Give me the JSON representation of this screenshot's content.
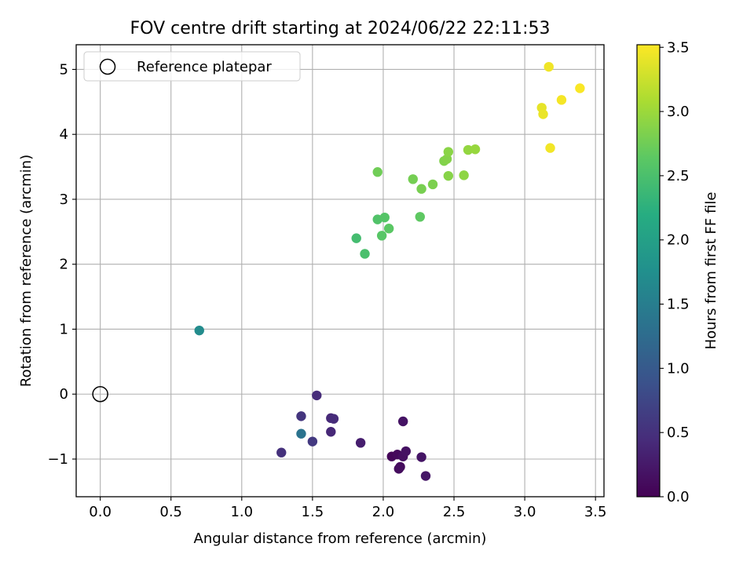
{
  "chart_data": {
    "type": "scatter",
    "title": "FOV centre drift starting at 2024/06/22 22:11:53",
    "xlabel": "Angular distance from reference (arcmin)",
    "ylabel": "Rotation from reference (arcmin)",
    "xlim": [
      -0.17,
      3.56
    ],
    "ylim": [
      -1.58,
      5.38
    ],
    "xticks": [
      0.0,
      0.5,
      1.0,
      1.5,
      2.0,
      2.5,
      3.0,
      3.5
    ],
    "xtick_labels": [
      "0.0",
      "0.5",
      "1.0",
      "1.5",
      "2.0",
      "2.5",
      "3.0",
      "3.5"
    ],
    "yticks": [
      -1,
      0,
      1,
      2,
      3,
      4,
      5
    ],
    "ytick_labels": [
      "−1",
      "0",
      "1",
      "2",
      "3",
      "4",
      "5"
    ],
    "grid": true,
    "legend": {
      "placement": "top-left",
      "entries": [
        {
          "label": "Reference platepar",
          "marker": "hollow-circle"
        }
      ]
    },
    "reference_point": {
      "x": 0.0,
      "y": 0.0
    },
    "colorbar": {
      "label": "Hours from first FF file",
      "range": [
        0.0,
        3.52
      ],
      "ticks": [
        0.0,
        0.5,
        1.0,
        1.5,
        2.0,
        2.5,
        3.0,
        3.5
      ],
      "tick_labels": [
        "0.0",
        "0.5",
        "1.0",
        "1.5",
        "2.0",
        "2.5",
        "3.0",
        "3.5"
      ],
      "colormap": "viridis"
    },
    "series": [
      {
        "points": [
          {
            "x": 2.06,
            "y": -0.96,
            "c": 0.05
          },
          {
            "x": 2.1,
            "y": -0.93,
            "c": 0.08
          },
          {
            "x": 2.12,
            "y": -1.12,
            "c": 0.1
          },
          {
            "x": 2.11,
            "y": -1.15,
            "c": 0.12
          },
          {
            "x": 2.14,
            "y": -0.96,
            "c": 0.14
          },
          {
            "x": 2.16,
            "y": -0.88,
            "c": 0.16
          },
          {
            "x": 2.14,
            "y": -0.42,
            "c": 0.18
          },
          {
            "x": 2.27,
            "y": -0.97,
            "c": 0.2
          },
          {
            "x": 2.3,
            "y": -1.26,
            "c": 0.22
          },
          {
            "x": 1.84,
            "y": -0.75,
            "c": 0.3
          },
          {
            "x": 1.63,
            "y": -0.58,
            "c": 0.4
          },
          {
            "x": 1.63,
            "y": -0.37,
            "c": 0.42
          },
          {
            "x": 1.65,
            "y": -0.38,
            "c": 0.44
          },
          {
            "x": 1.53,
            "y": -0.02,
            "c": 0.45
          },
          {
            "x": 1.28,
            "y": -0.9,
            "c": 0.5
          },
          {
            "x": 1.42,
            "y": -0.34,
            "c": 0.55
          },
          {
            "x": 1.5,
            "y": -0.73,
            "c": 0.6
          },
          {
            "x": 1.42,
            "y": -0.61,
            "c": 1.35
          },
          {
            "x": 0.7,
            "y": 0.98,
            "c": 1.7
          },
          {
            "x": 1.81,
            "y": 2.4,
            "c": 2.45
          },
          {
            "x": 1.87,
            "y": 2.16,
            "c": 2.5
          },
          {
            "x": 1.96,
            "y": 2.69,
            "c": 2.55
          },
          {
            "x": 2.01,
            "y": 2.72,
            "c": 2.58
          },
          {
            "x": 1.99,
            "y": 2.44,
            "c": 2.6
          },
          {
            "x": 2.04,
            "y": 2.55,
            "c": 2.62
          },
          {
            "x": 2.26,
            "y": 2.73,
            "c": 2.65
          },
          {
            "x": 1.96,
            "y": 3.42,
            "c": 2.75
          },
          {
            "x": 2.21,
            "y": 3.31,
            "c": 2.78
          },
          {
            "x": 2.27,
            "y": 3.16,
            "c": 2.8
          },
          {
            "x": 2.35,
            "y": 3.23,
            "c": 2.82
          },
          {
            "x": 2.43,
            "y": 3.59,
            "c": 2.85
          },
          {
            "x": 2.45,
            "y": 3.62,
            "c": 2.87
          },
          {
            "x": 2.46,
            "y": 3.73,
            "c": 2.9
          },
          {
            "x": 2.46,
            "y": 3.36,
            "c": 2.88
          },
          {
            "x": 2.57,
            "y": 3.37,
            "c": 2.92
          },
          {
            "x": 2.6,
            "y": 3.76,
            "c": 2.95
          },
          {
            "x": 2.65,
            "y": 3.77,
            "c": 2.97
          },
          {
            "x": 3.12,
            "y": 4.41,
            "c": 3.4
          },
          {
            "x": 3.13,
            "y": 4.31,
            "c": 3.42
          },
          {
            "x": 3.17,
            "y": 5.04,
            "c": 3.45
          },
          {
            "x": 3.18,
            "y": 3.79,
            "c": 3.46
          },
          {
            "x": 3.26,
            "y": 4.53,
            "c": 3.48
          },
          {
            "x": 3.39,
            "y": 4.71,
            "c": 3.5
          }
        ]
      }
    ]
  }
}
